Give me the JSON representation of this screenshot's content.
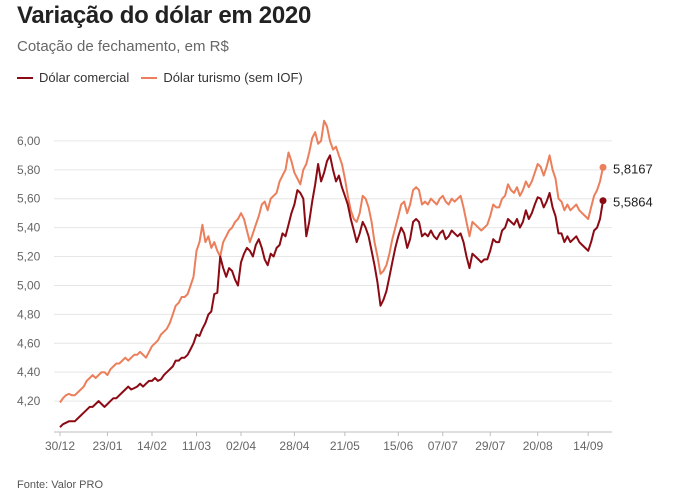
{
  "title": "Variação do dólar em 2020",
  "subtitle": "Cotação de fechamento, em R$",
  "source": "Fonte: Valor PRO",
  "colors": {
    "comercial": "#8b0a14",
    "turismo": "#ec7f5b",
    "grid": "#e6e6e6",
    "axis": "#bdbdbd"
  },
  "chart_data": {
    "type": "line",
    "ylim": [
      4.0,
      6.2
    ],
    "yticks": [
      "4,20",
      "4,40",
      "4,60",
      "4,80",
      "5,00",
      "5,20",
      "5,40",
      "5,60",
      "5,80",
      "6,00"
    ],
    "ytick_values": [
      4.2,
      4.4,
      4.6,
      4.8,
      5.0,
      5.2,
      5.4,
      5.6,
      5.8,
      6.0
    ],
    "xticks": [
      "30/12",
      "23/01",
      "14/02",
      "11/03",
      "02/04",
      "28/04",
      "21/05",
      "15/06",
      "07/07",
      "29/07",
      "20/08",
      "14/09"
    ],
    "xtick_index": [
      0,
      16,
      31,
      46,
      61,
      79,
      96,
      114,
      129,
      145,
      161,
      178
    ],
    "series": [
      {
        "name": "Dólar comercial",
        "color": "#8b0a14",
        "end_label": "5,5864",
        "values": [
          4.02,
          4.04,
          4.05,
          4.06,
          4.06,
          4.06,
          4.08,
          4.1,
          4.12,
          4.14,
          4.16,
          4.16,
          4.18,
          4.2,
          4.18,
          4.16,
          4.18,
          4.2,
          4.22,
          4.22,
          4.24,
          4.26,
          4.28,
          4.3,
          4.28,
          4.29,
          4.3,
          4.32,
          4.3,
          4.32,
          4.34,
          4.34,
          4.36,
          4.34,
          4.35,
          4.38,
          4.4,
          4.42,
          4.44,
          4.48,
          4.48,
          4.5,
          4.5,
          4.52,
          4.56,
          4.6,
          4.66,
          4.65,
          4.7,
          4.74,
          4.8,
          4.82,
          4.94,
          4.95,
          5.2,
          5.12,
          5.06,
          5.12,
          5.1,
          5.04,
          5.0,
          5.16,
          5.22,
          5.26,
          5.24,
          5.2,
          5.28,
          5.32,
          5.26,
          5.18,
          5.14,
          5.22,
          5.2,
          5.26,
          5.28,
          5.36,
          5.34,
          5.42,
          5.5,
          5.56,
          5.66,
          5.64,
          5.6,
          5.34,
          5.44,
          5.58,
          5.7,
          5.84,
          5.72,
          5.78,
          5.86,
          5.9,
          5.8,
          5.72,
          5.76,
          5.68,
          5.62,
          5.56,
          5.46,
          5.38,
          5.3,
          5.36,
          5.44,
          5.4,
          5.34,
          5.24,
          5.14,
          5.02,
          4.86,
          4.9,
          4.96,
          5.06,
          5.16,
          5.26,
          5.34,
          5.4,
          5.36,
          5.26,
          5.32,
          5.44,
          5.46,
          5.44,
          5.34,
          5.36,
          5.34,
          5.38,
          5.34,
          5.32,
          5.36,
          5.38,
          5.32,
          5.34,
          5.38,
          5.36,
          5.34,
          5.36,
          5.3,
          5.2,
          5.12,
          5.22,
          5.2,
          5.18,
          5.16,
          5.18,
          5.18,
          5.24,
          5.32,
          5.3,
          5.3,
          5.38,
          5.4,
          5.46,
          5.44,
          5.42,
          5.46,
          5.4,
          5.44,
          5.52,
          5.46,
          5.5,
          5.56,
          5.61,
          5.6,
          5.54,
          5.58,
          5.64,
          5.54,
          5.48,
          5.36,
          5.36,
          5.3,
          5.34,
          5.3,
          5.32,
          5.34,
          5.3,
          5.28,
          5.26,
          5.24,
          5.3,
          5.38,
          5.4,
          5.46,
          5.5864
        ]
      },
      {
        "name": "Dólar turismo (sem IOF)",
        "color": "#ec7f5b",
        "end_label": "5,8167",
        "values": [
          4.19,
          4.22,
          4.24,
          4.25,
          4.24,
          4.24,
          4.26,
          4.28,
          4.3,
          4.34,
          4.36,
          4.38,
          4.36,
          4.38,
          4.4,
          4.4,
          4.38,
          4.42,
          4.44,
          4.46,
          4.46,
          4.48,
          4.5,
          4.48,
          4.5,
          4.52,
          4.52,
          4.54,
          4.52,
          4.5,
          4.54,
          4.58,
          4.6,
          4.62,
          4.66,
          4.68,
          4.7,
          4.74,
          4.8,
          4.86,
          4.88,
          4.92,
          4.92,
          4.94,
          5.0,
          5.06,
          5.24,
          5.3,
          5.42,
          5.3,
          5.34,
          5.26,
          5.3,
          5.24,
          5.2,
          5.3,
          5.34,
          5.38,
          5.4,
          5.44,
          5.46,
          5.5,
          5.46,
          5.38,
          5.3,
          5.36,
          5.42,
          5.48,
          5.56,
          5.58,
          5.52,
          5.6,
          5.62,
          5.64,
          5.72,
          5.76,
          5.8,
          5.92,
          5.86,
          5.78,
          5.74,
          5.7,
          5.8,
          5.84,
          5.92,
          6.02,
          6.06,
          5.98,
          6.0,
          6.14,
          6.1,
          6.0,
          5.94,
          5.96,
          5.9,
          5.84,
          5.74,
          5.62,
          5.52,
          5.46,
          5.44,
          5.5,
          5.62,
          5.6,
          5.54,
          5.44,
          5.3,
          5.2,
          5.08,
          5.1,
          5.14,
          5.22,
          5.32,
          5.4,
          5.48,
          5.56,
          5.58,
          5.5,
          5.56,
          5.66,
          5.68,
          5.66,
          5.56,
          5.58,
          5.56,
          5.6,
          5.58,
          5.56,
          5.6,
          5.62,
          5.58,
          5.56,
          5.6,
          5.58,
          5.6,
          5.62,
          5.54,
          5.44,
          5.34,
          5.44,
          5.42,
          5.4,
          5.38,
          5.4,
          5.42,
          5.48,
          5.56,
          5.54,
          5.54,
          5.6,
          5.62,
          5.7,
          5.66,
          5.64,
          5.68,
          5.62,
          5.66,
          5.72,
          5.68,
          5.72,
          5.78,
          5.84,
          5.82,
          5.76,
          5.82,
          5.9,
          5.8,
          5.74,
          5.6,
          5.58,
          5.52,
          5.56,
          5.52,
          5.54,
          5.56,
          5.52,
          5.5,
          5.48,
          5.46,
          5.54,
          5.62,
          5.66,
          5.72,
          5.8167
        ]
      }
    ]
  }
}
